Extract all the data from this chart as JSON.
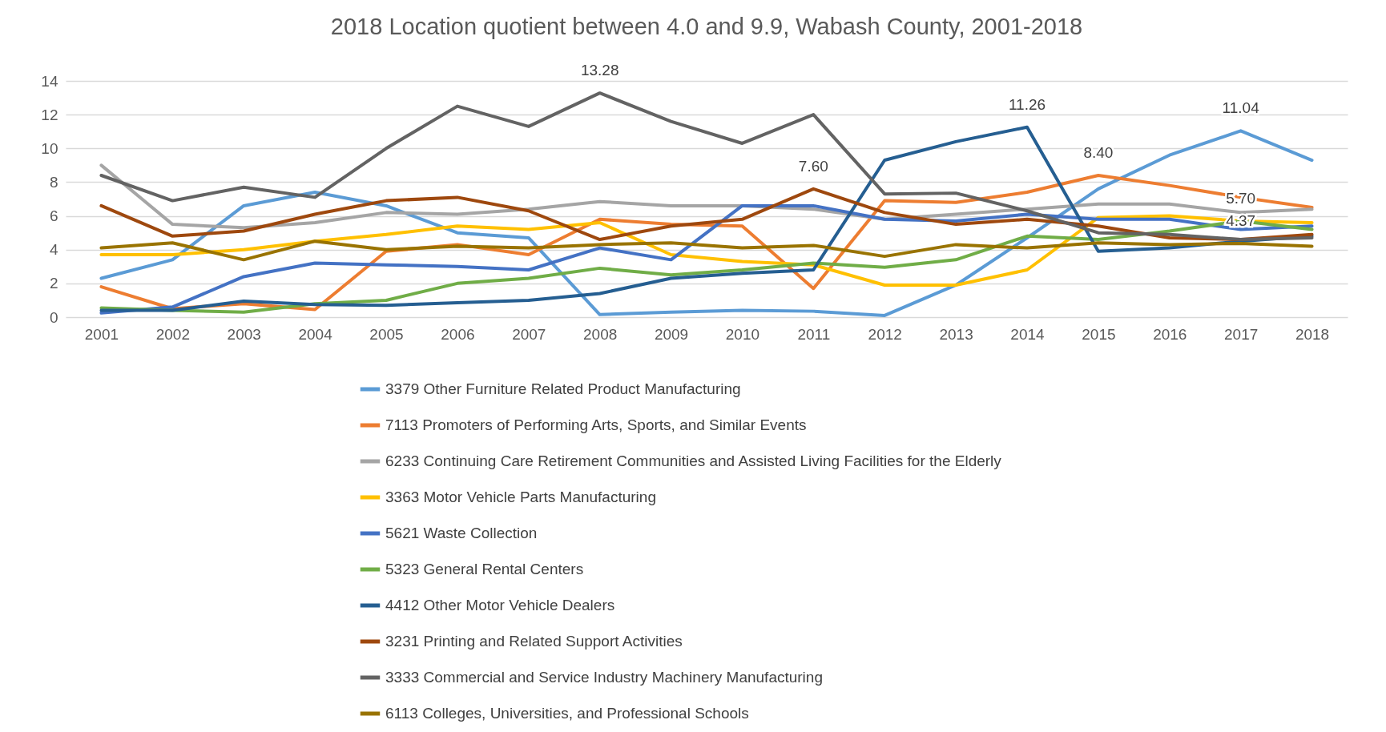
{
  "chart_data": {
    "type": "line",
    "title": "2018 Location quotient between 4.0 and 9.9, Wabash County, 2001-2018",
    "categories": [
      "2001",
      "2002",
      "2003",
      "2004",
      "2005",
      "2006",
      "2007",
      "2008",
      "2009",
      "2010",
      "2011",
      "2012",
      "2013",
      "2014",
      "2015",
      "2016",
      "2017",
      "2018"
    ],
    "ylim": [
      0,
      14
    ],
    "yticks": [
      0,
      2,
      4,
      6,
      8,
      10,
      12,
      14
    ],
    "grid": "y",
    "legend": "bottom",
    "series": [
      {
        "name": "3379 Other Furniture Related Product Manufacturing",
        "color": "#5b9bd5",
        "values": [
          2.3,
          3.4,
          6.6,
          7.4,
          6.6,
          5.0,
          4.7,
          0.15,
          0.3,
          0.4,
          0.35,
          0.1,
          1.9,
          4.7,
          7.6,
          9.6,
          11.04,
          9.3
        ],
        "value_labels": [
          null,
          null,
          null,
          null,
          null,
          null,
          null,
          null,
          null,
          null,
          null,
          null,
          null,
          null,
          null,
          null,
          "11.04",
          null
        ]
      },
      {
        "name": "7113 Promoters of Performing Arts, Sports, and Similar Events",
        "color": "#ed7d31",
        "values": [
          1.8,
          0.5,
          0.8,
          0.45,
          3.9,
          4.3,
          3.7,
          5.8,
          5.5,
          5.4,
          1.7,
          6.9,
          6.8,
          7.4,
          8.4,
          7.8,
          7.1,
          6.5
        ],
        "value_labels": [
          null,
          null,
          null,
          null,
          null,
          null,
          null,
          null,
          null,
          null,
          null,
          null,
          null,
          null,
          "8.40",
          null,
          null,
          null
        ]
      },
      {
        "name": "6233 Continuing Care Retirement Communities and Assisted Living Facilities for the Elderly",
        "color": "#a5a5a5",
        "values": [
          9.0,
          5.5,
          5.3,
          5.6,
          6.2,
          6.1,
          6.4,
          6.85,
          6.6,
          6.6,
          6.4,
          5.8,
          6.1,
          6.4,
          6.7,
          6.7,
          6.2,
          6.4
        ]
      },
      {
        "name": "3363 Motor Vehicle Parts Manufacturing",
        "color": "#ffc000",
        "values": [
          3.7,
          3.7,
          4.0,
          4.5,
          4.9,
          5.4,
          5.2,
          5.6,
          3.7,
          3.3,
          3.1,
          1.9,
          1.9,
          2.8,
          5.9,
          6.0,
          5.7,
          5.6
        ],
        "value_labels": [
          null,
          null,
          null,
          null,
          null,
          null,
          null,
          null,
          null,
          null,
          null,
          null,
          null,
          null,
          null,
          null,
          "5.70",
          null
        ]
      },
      {
        "name": "5621 Waste Collection",
        "color": "#4472c4",
        "values": [
          0.25,
          0.6,
          2.4,
          3.2,
          3.1,
          3.0,
          2.8,
          4.1,
          3.4,
          6.6,
          6.6,
          5.8,
          5.7,
          6.1,
          5.8,
          5.8,
          5.2,
          5.4
        ]
      },
      {
        "name": "5323 General Rental Centers",
        "color": "#70ad47",
        "values": [
          0.55,
          0.4,
          0.3,
          0.8,
          1.0,
          2.0,
          2.3,
          2.9,
          2.5,
          2.8,
          3.2,
          2.95,
          3.4,
          4.8,
          4.6,
          5.1,
          5.7,
          5.2
        ]
      },
      {
        "name": "4412 Other Motor Vehicle Dealers",
        "color": "#255e91",
        "values": [
          0.4,
          0.4,
          0.95,
          0.75,
          0.7,
          0.85,
          1.0,
          1.4,
          2.3,
          2.6,
          2.8,
          9.3,
          10.4,
          11.26,
          3.9,
          4.1,
          4.5,
          4.8
        ],
        "value_labels": [
          null,
          null,
          null,
          null,
          null,
          null,
          null,
          null,
          null,
          null,
          null,
          null,
          null,
          "11.26",
          null,
          null,
          null,
          null
        ]
      },
      {
        "name": "3231 Printing and Related Support Activities",
        "color": "#9e480e",
        "values": [
          6.6,
          4.8,
          5.1,
          6.1,
          6.9,
          7.1,
          6.3,
          4.6,
          5.4,
          5.8,
          7.6,
          6.2,
          5.5,
          5.8,
          5.4,
          4.7,
          4.6,
          4.9
        ],
        "value_labels": [
          null,
          null,
          null,
          null,
          null,
          null,
          null,
          null,
          null,
          null,
          "7.60",
          null,
          null,
          null,
          null,
          null,
          null,
          null
        ]
      },
      {
        "name": "3333 Commercial and Service Industry Machinery Manufacturing",
        "color": "#636363",
        "values": [
          8.4,
          6.9,
          7.7,
          7.1,
          10.0,
          12.5,
          11.3,
          13.28,
          11.6,
          10.3,
          12.0,
          7.3,
          7.35,
          6.3,
          5.0,
          4.9,
          4.6,
          4.7
        ],
        "value_labels": [
          null,
          null,
          null,
          null,
          null,
          null,
          null,
          "13.28",
          null,
          null,
          null,
          null,
          null,
          null,
          null,
          null,
          null,
          null
        ]
      },
      {
        "name": "6113 Colleges, Universities, and Professional Schools",
        "color": "#997300",
        "values": [
          4.1,
          4.4,
          3.4,
          4.5,
          4.0,
          4.2,
          4.1,
          4.3,
          4.4,
          4.1,
          4.25,
          3.6,
          4.3,
          4.1,
          4.4,
          4.3,
          4.37,
          4.2
        ],
        "value_labels": [
          null,
          null,
          null,
          null,
          null,
          null,
          null,
          null,
          null,
          null,
          null,
          null,
          null,
          null,
          null,
          null,
          "4.37",
          null
        ]
      }
    ]
  }
}
